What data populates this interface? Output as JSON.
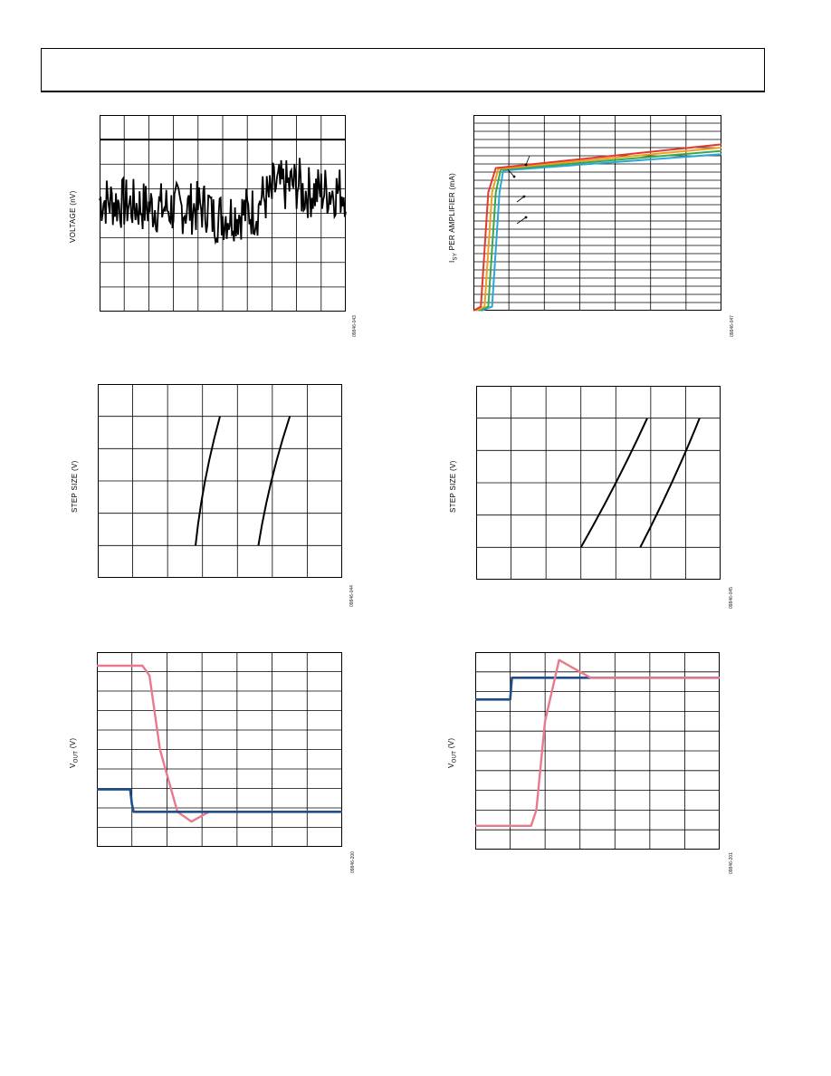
{
  "page": {
    "header_text": ""
  },
  "figures": [
    {
      "id": "fig1",
      "ylabel": "VOLTAGE (nV)",
      "fignum": "09846-043"
    },
    {
      "id": "fig2",
      "ylabel_main": "I",
      "ylabel_sub": "SY",
      "ylabel_rest": " PER AMPLIFIER (mA)",
      "fignum": "09846-047"
    },
    {
      "id": "fig3",
      "ylabel": "STEP SIZE (V)",
      "fignum": "09846-044"
    },
    {
      "id": "fig4",
      "ylabel": "STEP SIZE (V)",
      "fignum": "09846-045"
    },
    {
      "id": "fig5",
      "ylabel_main": "V",
      "ylabel_sub": "OUT",
      "ylabel_rest": " (V)",
      "fignum": "09846-200"
    },
    {
      "id": "fig6",
      "ylabel_main": "V",
      "ylabel_sub": "OUT",
      "ylabel_rest": " (V)",
      "fignum": "09846-201"
    }
  ],
  "chart_data": [
    {
      "id": "fig1",
      "type": "line",
      "title": "",
      "xlabel": "",
      "ylabel": "VOLTAGE (nV)",
      "grid": {
        "cols": 10,
        "rows": 8
      },
      "ylim": [
        0,
        8
      ],
      "series": [
        {
          "color": "#000000",
          "role": "reference-line",
          "x": [
            0,
            1
          ],
          "y": [
            7,
            7
          ]
        },
        {
          "color": "#000000",
          "role": "noise",
          "x": [
            0,
            0.5,
            1
          ],
          "y": [
            4.6,
            4.3,
            4.8
          ]
        }
      ]
    },
    {
      "id": "fig2",
      "type": "line",
      "title": "",
      "xlabel": "",
      "ylabel": "ISY PER AMPLIFIER (mA)",
      "grid": {
        "cols": 7,
        "rows": 24
      },
      "ylim": [
        0,
        24
      ],
      "series": [
        {
          "color": "#e23b2e",
          "x": [
            0.0,
            0.03,
            0.06,
            0.09,
            1.0
          ],
          "y": [
            0,
            0.5,
            14.5,
            17.5,
            20.4
          ]
        },
        {
          "color": "#f0a020",
          "x": [
            0.01,
            0.045,
            0.075,
            0.1,
            1.0
          ],
          "y": [
            0,
            0.5,
            14.5,
            17.4,
            20.0
          ]
        },
        {
          "color": "#3aa84a",
          "x": [
            0.02,
            0.06,
            0.09,
            0.11,
            1.0
          ],
          "y": [
            0,
            0.5,
            14.5,
            17.3,
            19.6
          ]
        },
        {
          "color": "#2aa6d8",
          "x": [
            0.03,
            0.075,
            0.105,
            0.12,
            1.0
          ],
          "y": [
            0,
            0.5,
            14.5,
            17.2,
            19.2
          ]
        }
      ]
    },
    {
      "id": "fig3",
      "type": "line",
      "title": "",
      "xlabel": "",
      "ylabel": "STEP SIZE (V)",
      "grid": {
        "cols": 7,
        "rows": 6
      },
      "ylim": [
        0,
        6
      ],
      "series": [
        {
          "color": "#000000",
          "x": [
            2.8,
            3.5
          ],
          "y": [
            1,
            5
          ]
        },
        {
          "color": "#000000",
          "x": [
            4.6,
            5.5
          ],
          "y": [
            1,
            5
          ]
        }
      ]
    },
    {
      "id": "fig4",
      "type": "line",
      "title": "",
      "xlabel": "",
      "ylabel": "STEP SIZE (V)",
      "grid": {
        "cols": 7,
        "rows": 6
      },
      "ylim": [
        0,
        6
      ],
      "series": [
        {
          "color": "#000000",
          "x": [
            3.0,
            4.9
          ],
          "y": [
            1,
            5
          ]
        },
        {
          "color": "#000000",
          "x": [
            4.7,
            6.4
          ],
          "y": [
            1,
            5
          ]
        }
      ]
    },
    {
      "id": "fig5",
      "type": "line",
      "title": "",
      "xlabel": "",
      "ylabel": "VOUT (V)",
      "grid": {
        "cols": 7,
        "rows": 10
      },
      "ylim": [
        0,
        10
      ],
      "series": [
        {
          "color": "#e97a8c",
          "role": "output",
          "x": [
            0,
            1.3,
            1.5,
            1.8,
            2.3,
            2.7,
            3.2,
            7
          ],
          "y": [
            9.3,
            9.3,
            8.8,
            5.0,
            1.8,
            1.3,
            1.8,
            1.8
          ]
        },
        {
          "color": "#1f4e8c",
          "role": "input",
          "x": [
            0,
            0.95,
            1.0,
            1.05,
            7
          ],
          "y": [
            2.95,
            2.95,
            2.2,
            1.8,
            1.8
          ]
        }
      ]
    },
    {
      "id": "fig6",
      "type": "line",
      "title": "",
      "xlabel": "",
      "ylabel": "VOUT (V)",
      "grid": {
        "cols": 7,
        "rows": 10
      },
      "ylim": [
        0,
        10
      ],
      "series": [
        {
          "color": "#1f4e8c",
          "role": "input",
          "x": [
            0,
            1.0,
            1.05,
            7
          ],
          "y": [
            7.6,
            7.6,
            8.7,
            8.7
          ]
        },
        {
          "color": "#e97a8c",
          "role": "output",
          "x": [
            0,
            1.6,
            1.75,
            2.0,
            2.4,
            2.9,
            3.3,
            7
          ],
          "y": [
            1.2,
            1.2,
            2.0,
            6.5,
            9.6,
            9.1,
            8.7,
            8.7
          ]
        }
      ]
    }
  ]
}
